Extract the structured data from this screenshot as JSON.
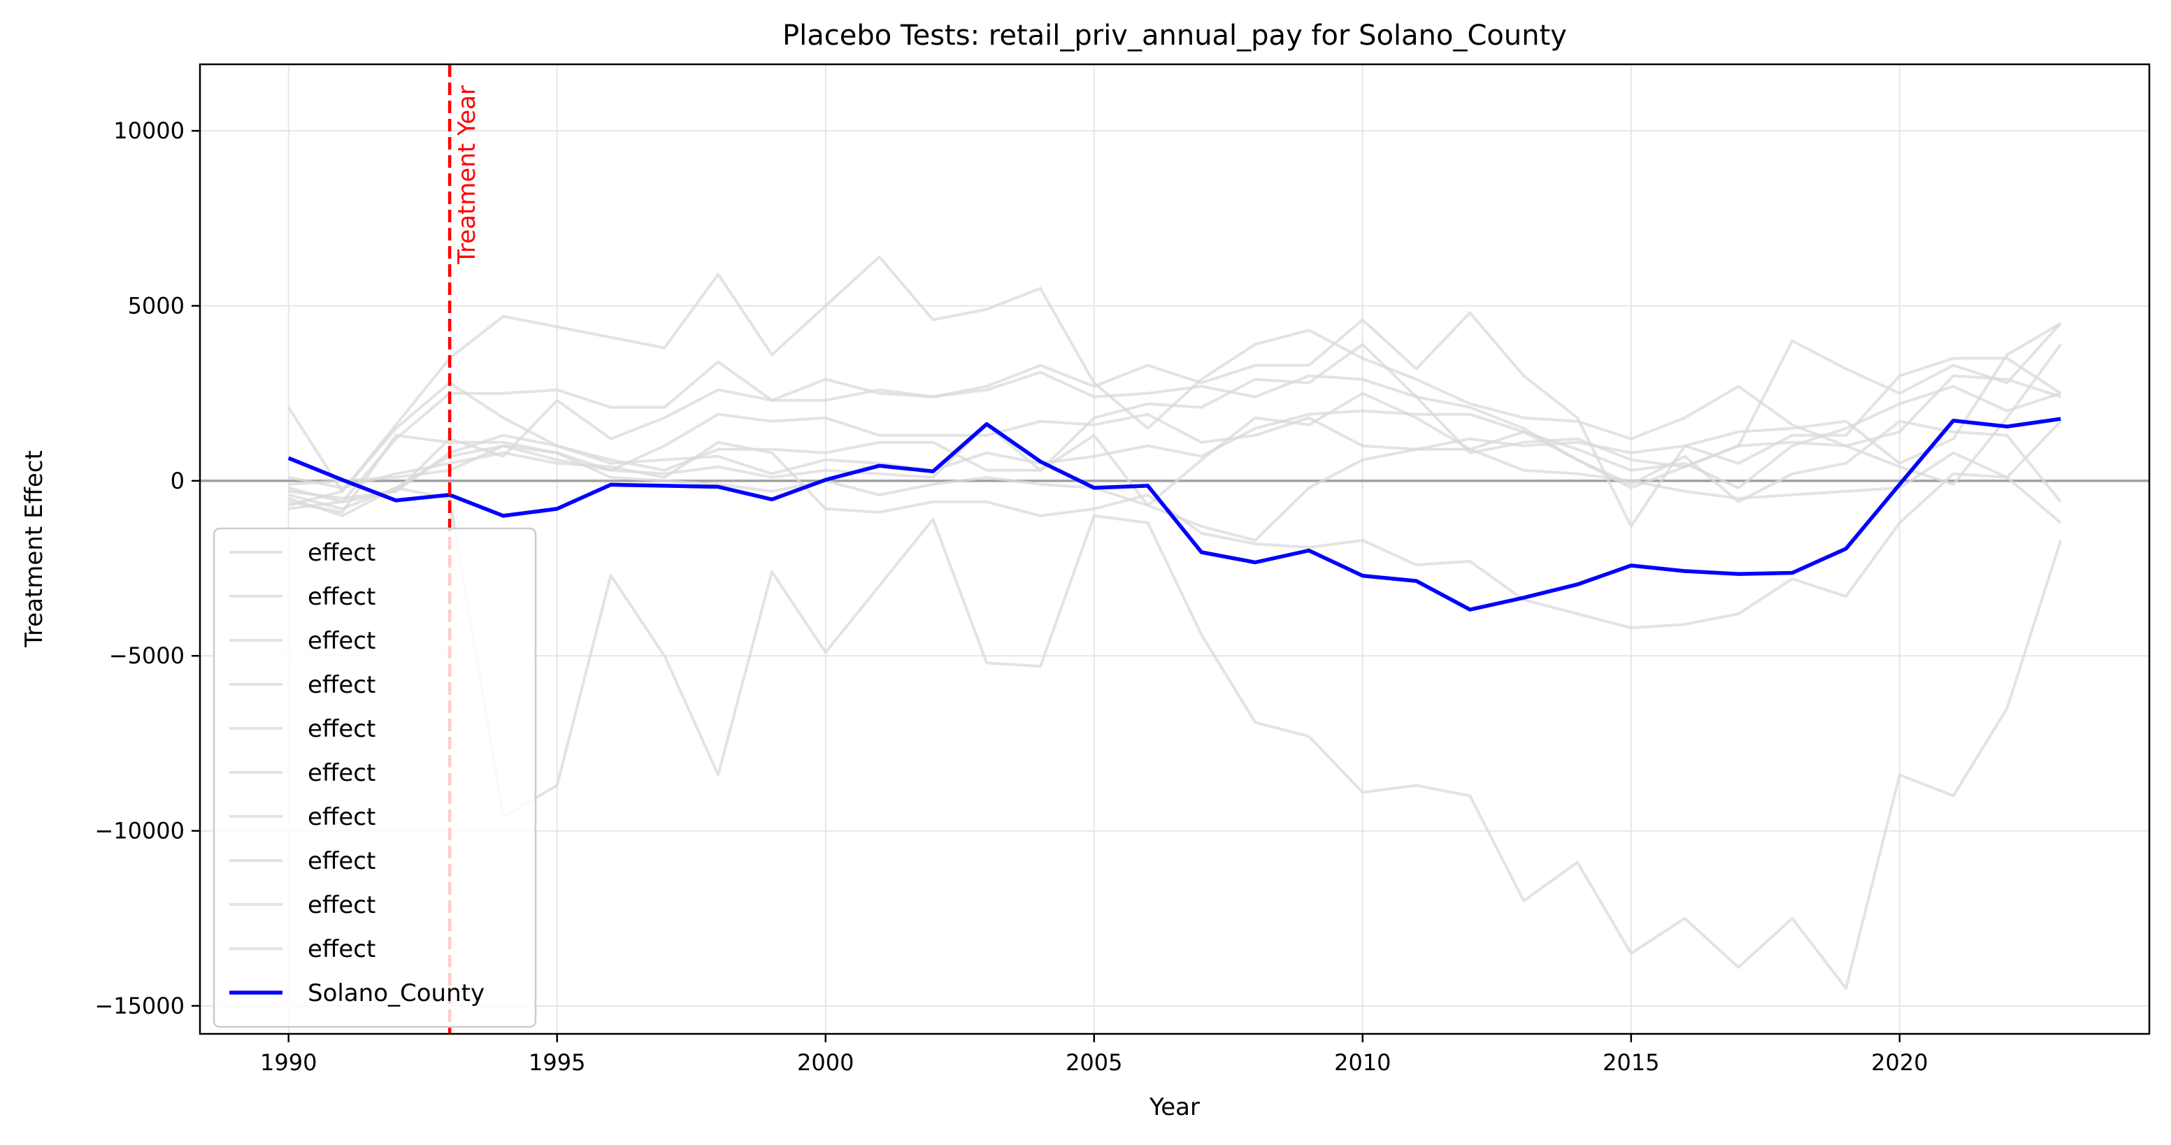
{
  "chart_data": {
    "type": "line",
    "title": "Placebo Tests: retail_priv_annual_pay for Solano_County",
    "xlabel": "Year",
    "ylabel": "Treatment Effect",
    "xlim": [
      1988.35,
      2024.65
    ],
    "ylim": [
      -15800,
      11900
    ],
    "xticks": [
      1990,
      1995,
      2000,
      2005,
      2010,
      2015,
      2020
    ],
    "yticks": [
      10000,
      5000,
      0,
      -5000,
      -10000,
      -15000
    ],
    "xtick_labels": [
      "1990",
      "1995",
      "2000",
      "2005",
      "2010",
      "2015",
      "2020"
    ],
    "ytick_labels": [
      "10000",
      "5000",
      "0",
      "−5000",
      "−10000",
      "−15000"
    ],
    "grid": true,
    "legend_position": "lower-left",
    "annotation": {
      "text": "Treatment Year",
      "x": 1993,
      "color": "#ff0000"
    },
    "reference_line_y": 0,
    "x": [
      1990,
      1991,
      1992,
      1993,
      1994,
      1995,
      1996,
      1997,
      1998,
      1999,
      2000,
      2001,
      2002,
      2003,
      2004,
      2005,
      2006,
      2007,
      2008,
      2009,
      2010,
      2011,
      2012,
      2013,
      2014,
      2015,
      2016,
      2017,
      2018,
      2019,
      2020,
      2021,
      2022,
      2023
    ],
    "placebo_color": "#d9d9d9",
    "main_color": "#0000ff",
    "series": [
      {
        "name": "effect",
        "values": [
          2100,
          -300,
          1500,
          2800,
          1800,
          1000,
          500,
          600,
          700,
          200,
          600,
          500,
          300,
          800,
          500,
          700,
          1000,
          700,
          1500,
          1900,
          2000,
          1900,
          1900,
          1400,
          900,
          300,
          500,
          -200,
          1000,
          1500,
          2200,
          2700,
          2000,
          2500
        ]
      },
      {
        "name": "effect",
        "values": [
          -700,
          -300,
          1600,
          3500,
          4700,
          4400,
          4100,
          3800,
          5900,
          3600,
          5000,
          6400,
          4600,
          4900,
          5500,
          2800,
          1500,
          2900,
          3900,
          4300,
          3500,
          2900,
          2200,
          1800,
          1700,
          1200,
          1800,
          2700,
          1600,
          1000,
          400,
          -100,
          1800,
          3900
        ]
      },
      {
        "name": "effect",
        "values": [
          -500,
          -1000,
          -200,
          -500,
          -9600,
          -8700,
          -2700,
          -5000,
          -8400,
          -2600,
          -4900,
          -3000,
          -1100,
          -5200,
          -5300,
          -1000,
          -1200,
          -4400,
          -6900,
          -7300,
          -8900,
          -8700,
          -9000,
          -12000,
          -10900,
          -13500,
          -12500,
          -13900,
          -12500,
          -14500,
          -8400,
          -9000,
          -6500,
          -1700
        ]
      },
      {
        "name": "effect",
        "values": [
          -200,
          -600,
          1200,
          2500,
          2500,
          2600,
          2100,
          2100,
          3400,
          2300,
          2900,
          2500,
          2400,
          2700,
          3300,
          2700,
          3300,
          2800,
          3300,
          3300,
          4600,
          3200,
          4800,
          3000,
          1800,
          -1300,
          1000,
          500,
          1300,
          1300,
          3000,
          3500,
          3500,
          2500
        ]
      },
      {
        "name": "effect",
        "values": [
          -800,
          -600,
          -300,
          1200,
          700,
          2300,
          1200,
          1800,
          2600,
          2300,
          2300,
          2600,
          2400,
          2600,
          3100,
          2400,
          2500,
          2700,
          2400,
          3000,
          2900,
          2400,
          2100,
          1500,
          600,
          -200,
          400,
          1000,
          1100,
          1000,
          1400,
          3000,
          2900,
          2400
        ]
      },
      {
        "name": "effect",
        "values": [
          -300,
          -500,
          -300,
          800,
          1300,
          1000,
          600,
          300,
          900,
          900,
          800,
          1100,
          1100,
          300,
          300,
          1800,
          2200,
          2100,
          2900,
          2800,
          3900,
          2400,
          800,
          1100,
          1200,
          600,
          400,
          1000,
          4000,
          3200,
          2500,
          3300,
          2800,
          4500
        ]
      },
      {
        "name": "effect",
        "values": [
          -400,
          -800,
          -200,
          700,
          1000,
          600,
          300,
          1000,
          1900,
          1700,
          1800,
          1300,
          1300,
          1300,
          1700,
          1600,
          1900,
          1100,
          1300,
          1800,
          1000,
          900,
          900,
          1400,
          600,
          -100,
          700,
          -600,
          200,
          500,
          1700,
          1400,
          1300,
          -600
        ]
      },
      {
        "name": "effect",
        "values": [
          100,
          -200,
          200,
          500,
          800,
          500,
          400,
          100,
          1100,
          800,
          -800,
          -900,
          -600,
          -600,
          -1000,
          -800,
          -400,
          -1500,
          -1800,
          -1900,
          -1700,
          -2400,
          -2300,
          -3400,
          -3800,
          -4200,
          -4100,
          -3800,
          -2800,
          -3300,
          -1200,
          200,
          100,
          -1200
        ]
      },
      {
        "name": "effect",
        "values": [
          -100,
          0,
          100,
          300,
          1000,
          800,
          300,
          200,
          400,
          100,
          300,
          200,
          100,
          1600,
          300,
          1300,
          -700,
          600,
          1800,
          1600,
          2500,
          1800,
          900,
          300,
          200,
          0,
          -300,
          -500,
          -400,
          -300,
          -200,
          800,
          100,
          1700
        ]
      },
      {
        "name": "effect",
        "values": [
          -600,
          -900,
          1300,
          1100,
          1100,
          800,
          100,
          0,
          -100,
          -300,
          0,
          -400,
          -100,
          100,
          -100,
          -200,
          -700,
          -1300,
          -1700,
          -200,
          600,
          900,
          1200,
          1000,
          1100,
          800,
          1000,
          1400,
          1500,
          1700,
          500,
          1200,
          3600,
          4500
        ]
      },
      {
        "name": "Solano_County",
        "values": [
          650,
          30,
          -560,
          -400,
          -1000,
          -800,
          -110,
          -140,
          -170,
          -530,
          30,
          430,
          270,
          1620,
          550,
          -200,
          -140,
          -2040,
          -2330,
          -1990,
          -2710,
          -2860,
          -3680,
          -3340,
          -2960,
          -2420,
          -2580,
          -2660,
          -2630,
          -1940,
          -100,
          1720,
          1550,
          1770
        ]
      }
    ]
  }
}
